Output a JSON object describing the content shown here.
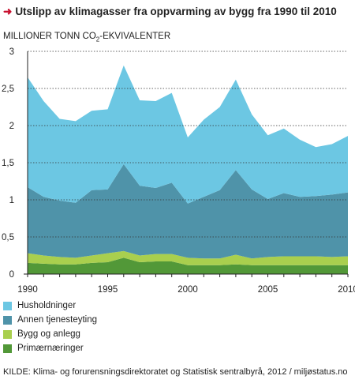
{
  "title": "Utslipp av klimagasser fra oppvarming av bygg fra 1990 til 2010",
  "source": "KILDE: Klima- og forurensningsdirektoratet og Statistisk sentralbyrå, 2012 / miljøstatus.no",
  "colors": {
    "accent_arrow": "#c8102e",
    "Husholdninger": "#6cc7e3",
    "Annen tjenesteyting": "#4f93a9",
    "Bygg og anlegg": "#a9cf4e",
    "Primærnæringer": "#529838"
  },
  "chart_data": {
    "type": "area",
    "stacked": true,
    "title": "Utslipp av klimagasser fra oppvarming av bygg fra 1990 til 2010",
    "ylabel_main": "MILLIONER TONN CO",
    "ylabel_sub": "2",
    "ylabel_suffix": "-EKVIVALENTER",
    "xlabel": "",
    "ylim": [
      0,
      3
    ],
    "xlim": [
      1990,
      2010
    ],
    "y_ticks": [
      "0",
      "0,5",
      "1",
      "1,5",
      "2",
      "2,5",
      "3"
    ],
    "x_ticks": [
      "1990",
      "1995",
      "2000",
      "2005",
      "2010"
    ],
    "grid": "horizontal dotted",
    "legend_position": "bottom",
    "x": [
      1990,
      1991,
      1992,
      1993,
      1994,
      1995,
      1996,
      1997,
      1998,
      1999,
      2000,
      2001,
      2002,
      2003,
      2004,
      2005,
      2006,
      2007,
      2008,
      2009,
      2010
    ],
    "series": [
      {
        "name": "Primærnæringer",
        "values": [
          0.15,
          0.14,
          0.13,
          0.13,
          0.15,
          0.16,
          0.22,
          0.16,
          0.17,
          0.17,
          0.12,
          0.12,
          0.12,
          0.13,
          0.12,
          0.12,
          0.12,
          0.12,
          0.12,
          0.12,
          0.12
        ]
      },
      {
        "name": "Bygg og anlegg",
        "values": [
          0.13,
          0.11,
          0.1,
          0.09,
          0.1,
          0.12,
          0.09,
          0.09,
          0.1,
          0.1,
          0.1,
          0.09,
          0.09,
          0.13,
          0.09,
          0.11,
          0.12,
          0.12,
          0.12,
          0.11,
          0.12
        ]
      },
      {
        "name": "Annen tjenesteyting",
        "values": [
          0.89,
          0.79,
          0.76,
          0.74,
          0.88,
          0.86,
          1.17,
          0.94,
          0.89,
          0.96,
          0.73,
          0.83,
          0.92,
          1.14,
          0.93,
          0.78,
          0.85,
          0.8,
          0.81,
          0.84,
          0.86
        ]
      },
      {
        "name": "Husholdninger",
        "values": [
          1.48,
          1.29,
          1.1,
          1.1,
          1.07,
          1.08,
          1.33,
          1.15,
          1.17,
          1.21,
          0.89,
          1.04,
          1.12,
          1.22,
          1.01,
          0.86,
          0.87,
          0.77,
          0.66,
          0.68,
          0.76
        ]
      }
    ]
  }
}
